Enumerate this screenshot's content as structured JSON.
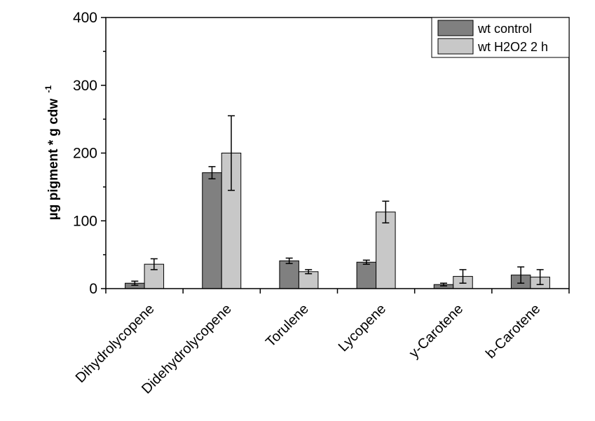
{
  "chart_data": {
    "type": "bar",
    "categories": [
      "Dihydrolycopene",
      "Didehydrolycopene",
      "Torulene",
      "Lycopene",
      "y-Carotene",
      "b-Carotene"
    ],
    "series": [
      {
        "name": "wt control",
        "color": "#808080",
        "values": [
          8,
          171,
          41,
          39,
          6,
          20
        ],
        "errors": [
          3,
          9,
          4,
          3,
          2,
          12
        ]
      },
      {
        "name": "wt H2O2 2 h",
        "color": "#c8c8c8",
        "values": [
          36,
          200,
          25,
          113,
          18,
          17
        ],
        "errors": [
          8,
          55,
          3,
          16,
          10,
          11
        ]
      }
    ],
    "ylabel": "µg pigment * g cdw",
    "ylabel_sup": "-1",
    "xlabel": "",
    "ylim": [
      0,
      400
    ],
    "yticks": [
      "0",
      "100",
      "200",
      "300",
      "400"
    ],
    "legend_position": "top-right",
    "grid": false
  }
}
